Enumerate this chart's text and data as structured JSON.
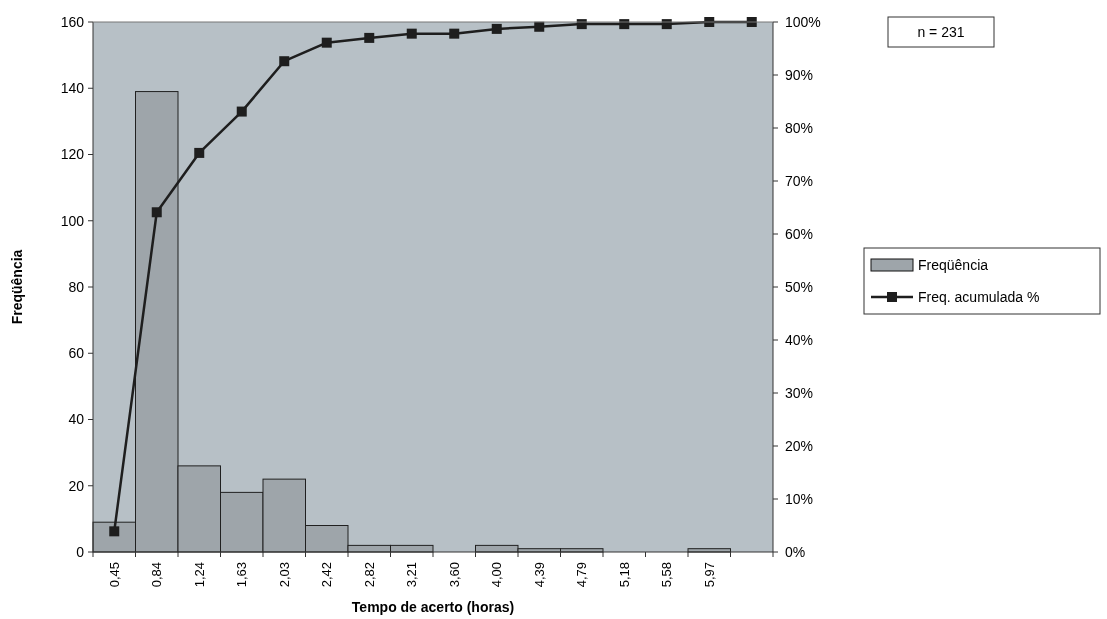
{
  "chart_data": {
    "type": "bar",
    "xlabel": "Tempo de acerto (horas)",
    "ylabel": "Freqüência",
    "categories": [
      "0,45",
      "0,84",
      "1,24",
      "1,63",
      "2,03",
      "2,42",
      "2,82",
      "3,21",
      "3,60",
      "4,00",
      "4,39",
      "4,79",
      "5,18",
      "5,58",
      "5,97",
      null
    ],
    "series": [
      {
        "name": "Freqüência",
        "color": "#9ea5aa",
        "values": [
          9,
          139,
          26,
          18,
          22,
          8,
          2,
          2,
          0,
          2,
          1,
          1,
          0,
          0,
          1,
          0
        ]
      },
      {
        "name": "Freq. acumulada %",
        "type": "line",
        "axis": "y2",
        "color": "#1e1e1e",
        "marker": "square",
        "values": [
          3.9,
          64.1,
          75.3,
          83.1,
          92.6,
          96.1,
          97.0,
          97.8,
          97.8,
          98.7,
          99.1,
          99.6,
          99.6,
          99.6,
          100,
          100
        ]
      }
    ],
    "ylim": [
      0,
      160
    ],
    "yticks": [
      0,
      20,
      40,
      60,
      80,
      100,
      120,
      140,
      160
    ],
    "y2lim": [
      0,
      100
    ],
    "y2ticks": [
      {
        "value": 0,
        "label": "0%"
      },
      {
        "value": 10,
        "label": "10%"
      },
      {
        "value": 20,
        "label": "20%"
      },
      {
        "value": 30,
        "label": "30%"
      },
      {
        "value": 40,
        "label": "40%"
      },
      {
        "value": 50,
        "label": "50%"
      },
      {
        "value": 60,
        "label": "60%"
      },
      {
        "value": 70,
        "label": "70%"
      },
      {
        "value": 80,
        "label": "80%"
      },
      {
        "value": 90,
        "label": "90%"
      },
      {
        "value": 100,
        "label": "100%"
      }
    ],
    "annotations": [
      "n = 231"
    ],
    "legend": "right",
    "grid": false
  }
}
